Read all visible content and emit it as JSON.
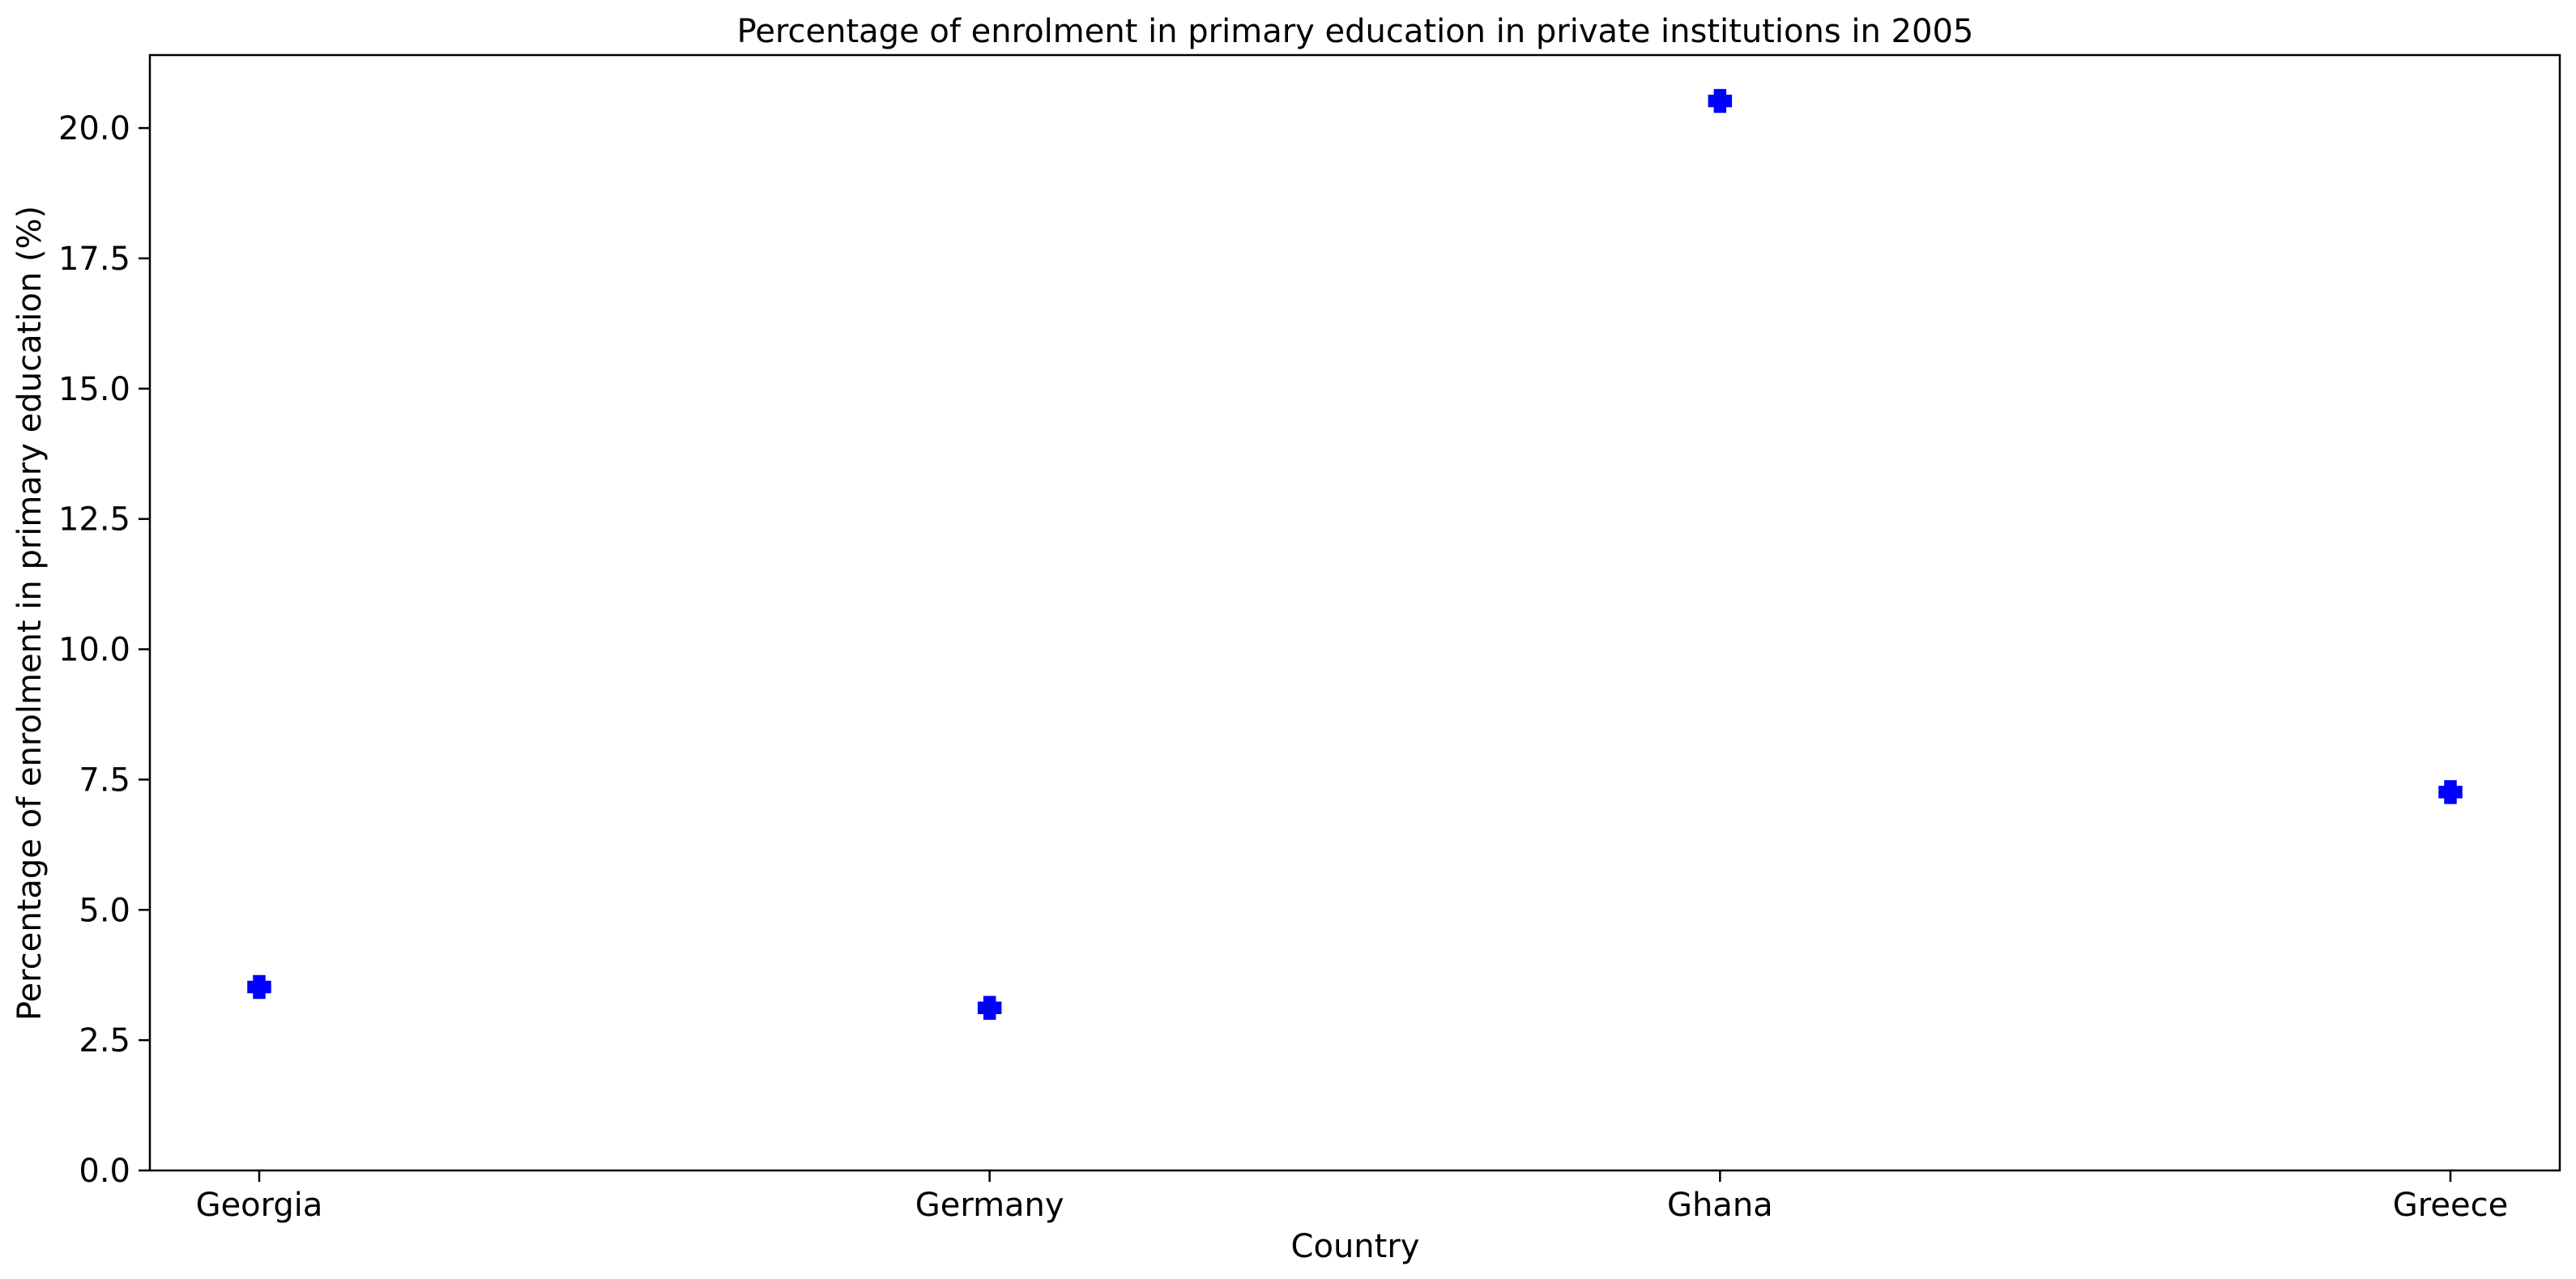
{
  "chart_data": {
    "type": "scatter",
    "title": "Percentage of enrolment in primary education in private institutions in 2005",
    "xlabel": "Country",
    "ylabel": "Percentage of enrolment in primary education (%)",
    "categories": [
      "Georgia",
      "Germany",
      "Ghana",
      "Greece"
    ],
    "series": [
      {
        "values": [
          3.52,
          3.12,
          20.52,
          7.26
        ],
        "color": "#0000ff",
        "marker": "plus-filled"
      }
    ],
    "ylim": [
      0,
      21.4
    ],
    "yticks": [
      0.0,
      2.5,
      5.0,
      7.5,
      10.0,
      12.5,
      15.0,
      17.5,
      20.0
    ],
    "ytick_labels": [
      "0.0",
      "2.5",
      "5.0",
      "7.5",
      "10.0",
      "12.5",
      "15.0",
      "17.5",
      "20.0"
    ],
    "grid": false,
    "legend": "none"
  }
}
